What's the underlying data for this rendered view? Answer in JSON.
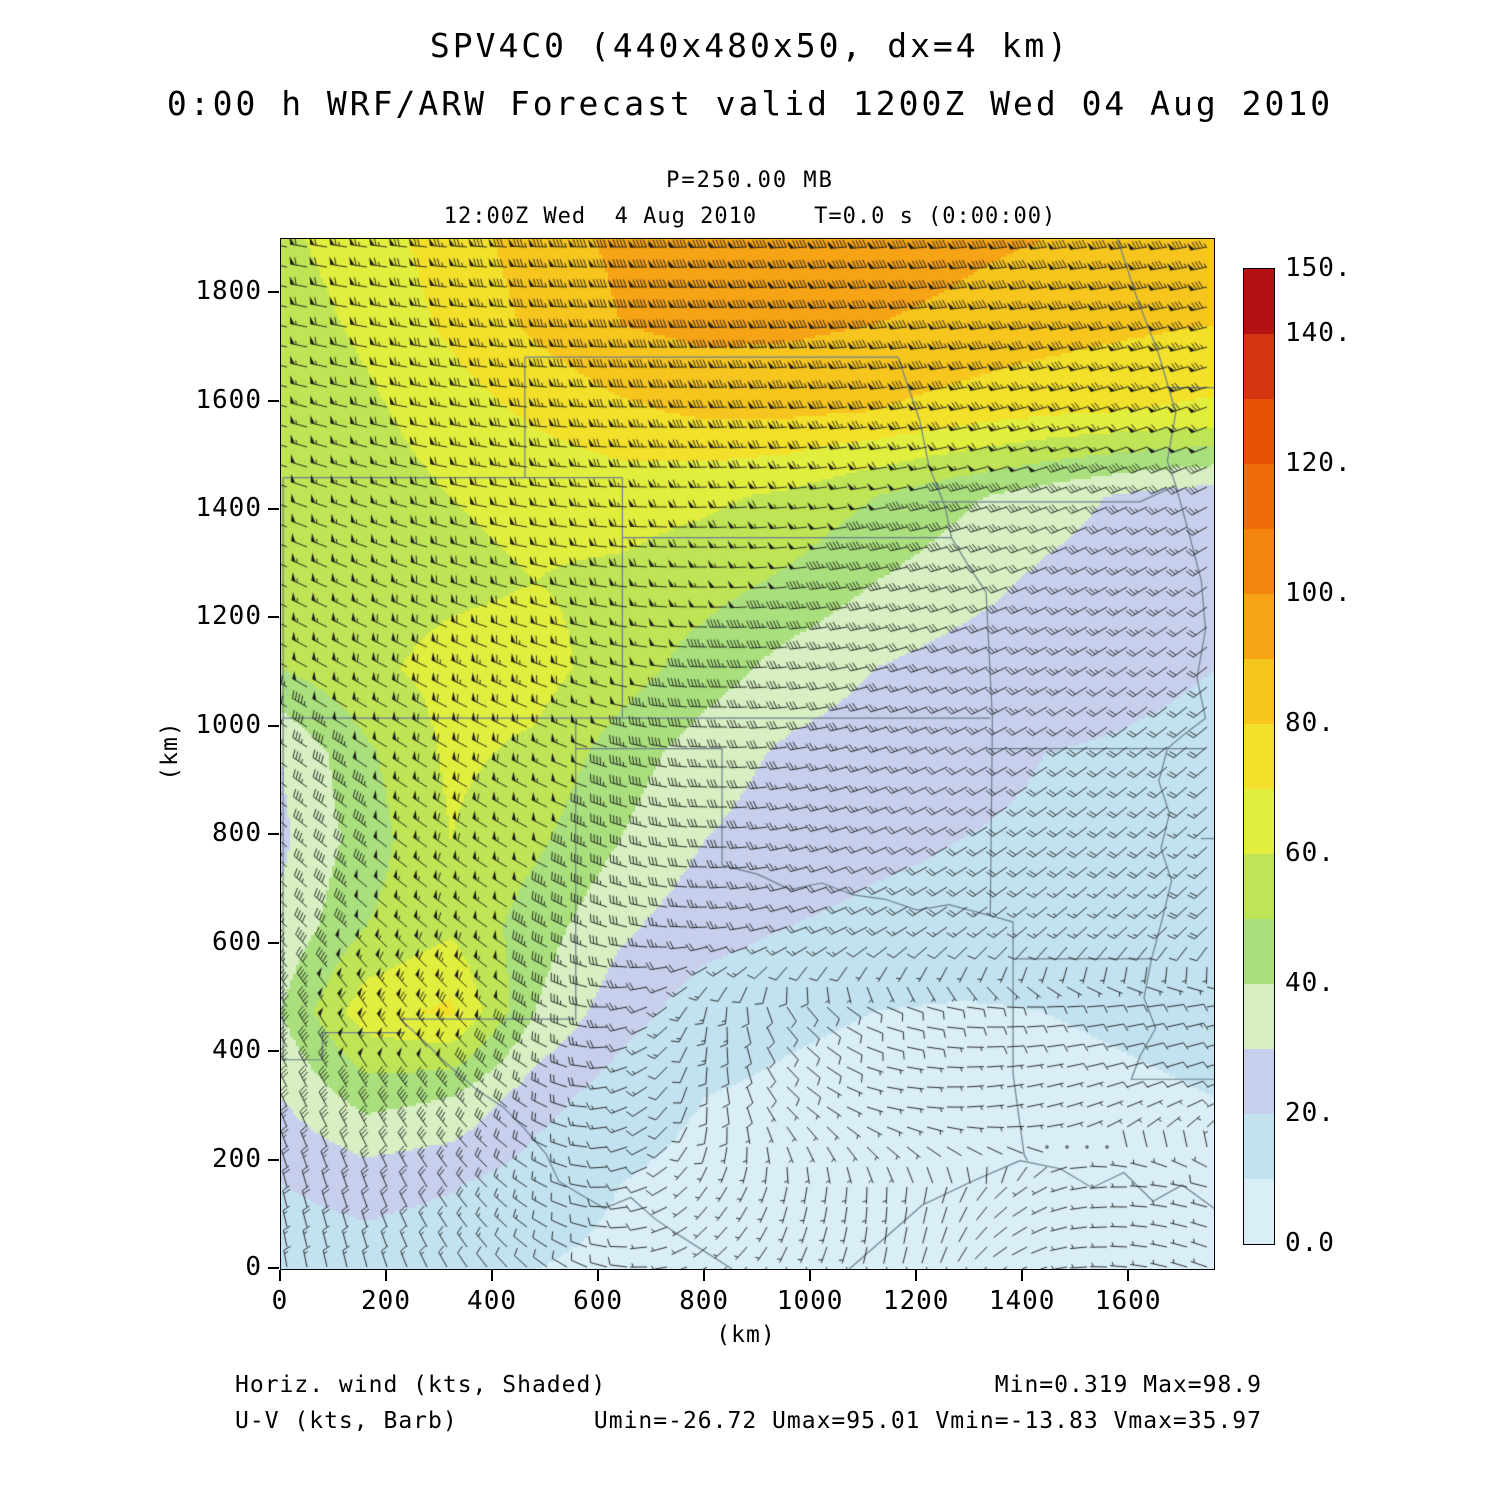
{
  "header": {
    "title_line1": "SPV4C0 (440x480x50, dx=4 km)",
    "title_line2": "0:00 h WRF/ARW Forecast valid 1200Z Wed 04 Aug 2010",
    "pressure_label": "P=250.00 MB",
    "time_label": "12:00Z Wed  4 Aug 2010    T=0.0 s (0:00:00)"
  },
  "footer": {
    "shading_label": "Horiz. wind (kts, Shaded)",
    "barb_label": "U-V (kts, Barb)",
    "minmax_label": "Min=0.319 Max=98.9",
    "uv_range_label": "Umin=-26.72 Umax=95.01 Vmin=-13.83 Vmax=35.97"
  },
  "chart_data": {
    "type": "heatmap",
    "field_name": "Horizontal wind speed (kts, shaded) with U-V wind barbs (kts) at 250.00 MB",
    "xlabel": "(km)",
    "ylabel": "(km)",
    "x_range": [
      0,
      1760
    ],
    "y_range": [
      0,
      1900
    ],
    "x_ticks": [
      0,
      200,
      400,
      600,
      800,
      1000,
      1200,
      1400,
      1600
    ],
    "y_ticks": [
      0,
      200,
      400,
      600,
      800,
      1000,
      1200,
      1400,
      1600,
      1800
    ],
    "stats": {
      "min": 0.319,
      "max": 98.9,
      "umin": -26.72,
      "umax": 95.01,
      "vmin": -13.83,
      "vmax": 35.97
    },
    "colorbar": {
      "levels": [
        0,
        10,
        20,
        30,
        40,
        50,
        60,
        70,
        80,
        90,
        100,
        110,
        120,
        130,
        140,
        150
      ],
      "colors": [
        "#d9eef6",
        "#c3e2f0",
        "#c7cfec",
        "#d7efc2",
        "#a9df7c",
        "#bfe455",
        "#e2ee3e",
        "#f2e02a",
        "#f6c51e",
        "#f6a316",
        "#f2850e",
        "#ee6b08",
        "#e65106",
        "#d63410",
        "#b41212"
      ],
      "ticks": [
        {
          "value": 150,
          "label": "150."
        },
        {
          "value": 140,
          "label": "140."
        },
        {
          "value": 120,
          "label": "120."
        },
        {
          "value": 100,
          "label": "100."
        },
        {
          "value": 80,
          "label": "80."
        },
        {
          "value": 60,
          "label": "60."
        },
        {
          "value": 40,
          "label": "40."
        },
        {
          "value": 20,
          "label": "20."
        },
        {
          "value": 0,
          "label": "0.0"
        }
      ]
    },
    "grid": {
      "x": [
        0,
        160,
        320,
        480,
        640,
        800,
        960,
        1120,
        1280,
        1440,
        1600,
        1760
      ],
      "y": [
        0,
        158,
        317,
        475,
        633,
        792,
        950,
        1108,
        1267,
        1425,
        1583,
        1742,
        1900
      ],
      "speed_kts": [
        [
          14,
          15,
          13,
          10,
          8,
          6,
          4,
          2,
          1,
          2,
          4,
          6
        ],
        [
          20,
          24,
          21,
          15,
          10,
          7,
          5,
          3,
          2,
          3,
          6,
          8
        ],
        [
          30,
          44,
          40,
          24,
          15,
          10,
          8,
          6,
          5,
          6,
          8,
          10
        ],
        [
          40,
          66,
          72,
          40,
          24,
          15,
          12,
          10,
          9,
          10,
          12,
          14
        ],
        [
          32,
          50,
          58,
          45,
          32,
          24,
          20,
          18,
          17,
          16,
          17,
          18
        ],
        [
          28,
          45,
          60,
          52,
          40,
          30,
          25,
          22,
          20,
          19,
          18,
          17
        ],
        [
          30,
          48,
          62,
          58,
          45,
          35,
          28,
          25,
          22,
          20,
          19,
          18
        ],
        [
          50,
          58,
          63,
          64,
          55,
          45,
          36,
          30,
          26,
          24,
          22,
          20
        ],
        [
          52,
          56,
          58,
          60,
          58,
          54,
          48,
          40,
          34,
          28,
          24,
          22
        ],
        [
          50,
          55,
          60,
          62,
          64,
          62,
          58,
          50,
          42,
          35,
          28,
          24
        ],
        [
          52,
          58,
          65,
          72,
          78,
          82,
          82,
          80,
          76,
          72,
          70,
          68
        ],
        [
          55,
          62,
          72,
          82,
          90,
          93,
          92,
          90,
          88,
          85,
          82,
          80
        ],
        [
          58,
          65,
          75,
          85,
          92,
          95,
          97,
          95,
          92,
          90,
          88,
          85
        ]
      ],
      "dir_from_deg": [
        [
          350,
          345,
          330,
          310,
          280,
          240,
          210,
          195,
          210,
          250,
          275,
          290
        ],
        [
          345,
          340,
          325,
          300,
          260,
          215,
          190,
          180,
          200,
          240,
          270,
          285
        ],
        [
          335,
          330,
          320,
          300,
          250,
          180,
          130,
          100,
          85,
          75,
          70,
          68
        ],
        [
          330,
          326,
          318,
          300,
          260,
          190,
          140,
          110,
          95,
          85,
          80,
          78
        ],
        [
          315,
          312,
          308,
          300,
          285,
          268,
          252,
          242,
          234,
          230,
          228,
          226
        ],
        [
          310,
          308,
          305,
          298,
          288,
          272,
          258,
          248,
          240,
          234,
          230,
          228
        ],
        [
          305,
          303,
          300,
          295,
          285,
          272,
          262,
          252,
          244,
          238,
          232,
          230
        ],
        [
          300,
          298,
          295,
          290,
          282,
          272,
          264,
          256,
          248,
          242,
          236,
          232
        ],
        [
          295,
          292,
          288,
          283,
          277,
          270,
          264,
          258,
          252,
          246,
          240,
          236
        ],
        [
          290,
          286,
          282,
          278,
          273,
          268,
          264,
          260,
          255,
          250,
          246,
          242
        ],
        [
          285,
          282,
          279,
          276,
          272,
          268,
          265,
          262,
          258,
          255,
          252,
          250
        ],
        [
          282,
          280,
          277,
          274,
          271,
          268,
          266,
          264,
          262,
          260,
          258,
          256
        ],
        [
          280,
          278,
          275,
          272,
          270,
          268,
          266,
          265,
          264,
          263,
          262,
          260
        ]
      ]
    },
    "state_borders": [
      [
        [
          4,
          1016
        ],
        [
          1338,
          1016
        ]
      ],
      [
        [
          556,
          461
        ],
        [
          556,
          1016
        ]
      ],
      [
        [
          556,
          960
        ],
        [
          832,
          960
        ]
      ],
      [
        [
          832,
          960
        ],
        [
          832,
          745
        ]
      ],
      [
        [
          832,
          745
        ],
        [
          900,
          728
        ],
        [
          960,
          700
        ],
        [
          1020,
          712
        ],
        [
          1080,
          690
        ],
        [
          1140,
          682
        ],
        [
          1200,
          662
        ],
        [
          1260,
          672
        ],
        [
          1338,
          652
        ]
      ],
      [
        [
          1338,
          652
        ],
        [
          1342,
          1016
        ],
        [
          1330,
          1249
        ]
      ],
      [
        [
          1330,
          960
        ],
        [
          1744,
          960
        ]
      ],
      [
        [
          1385,
          572
        ],
        [
          1642,
          572
        ]
      ],
      [
        [
          1338,
          652
        ],
        [
          1381,
          640
        ],
        [
          1381,
          360
        ],
        [
          1392,
          280
        ],
        [
          1402,
          210
        ],
        [
          1408,
          200
        ]
      ],
      [
        [
          0,
          386
        ],
        [
          78,
          386
        ],
        [
          78,
          436
        ],
        [
          232,
          436
        ]
      ],
      [
        [
          225,
          461
        ],
        [
          270,
          420
        ],
        [
          320,
          372
        ],
        [
          370,
          330
        ],
        [
          420,
          298
        ],
        [
          460,
          258
        ],
        [
          500,
          212
        ],
        [
          524,
          162
        ],
        [
          560,
          140
        ],
        [
          610,
          112
        ],
        [
          660,
          132
        ],
        [
          706,
          92
        ],
        [
          752,
          62
        ],
        [
          800,
          32
        ],
        [
          851,
          0
        ]
      ],
      [
        [
          225,
          461
        ],
        [
          556,
          461
        ]
      ],
      [
        [
          4,
          386
        ],
        [
          4,
          1460
        ]
      ],
      [
        [
          644,
          1016
        ],
        [
          644,
          1460
        ]
      ],
      [
        [
          644,
          1349
        ],
        [
          1265,
          1349
        ]
      ],
      [
        [
          4,
          1460
        ],
        [
          644,
          1460
        ]
      ],
      [
        [
          460,
          1460
        ],
        [
          460,
          1682
        ]
      ],
      [
        [
          460,
          1682
        ],
        [
          1164,
          1682
        ]
      ],
      [
        [
          1164,
          1682
        ],
        [
          1205,
          1565
        ],
        [
          1222,
          1482
        ],
        [
          1252,
          1408
        ],
        [
          1265,
          1349
        ],
        [
          1300,
          1292
        ],
        [
          1330,
          1249
        ]
      ],
      [
        [
          1222,
          1415
        ],
        [
          1620,
          1415
        ],
        [
          1688,
          1445
        ]
      ],
      [
        [
          1578,
          1900
        ],
        [
          1615,
          1790
        ],
        [
          1655,
          1690
        ],
        [
          1688,
          1580
        ],
        [
          1672,
          1490
        ],
        [
          1688,
          1445
        ],
        [
          1712,
          1360
        ],
        [
          1736,
          1270
        ],
        [
          1744,
          1180
        ],
        [
          1728,
          1090
        ],
        [
          1744,
          1016
        ],
        [
          1706,
          988
        ],
        [
          1672,
          960
        ]
      ],
      [
        [
          1672,
          960
        ],
        [
          1656,
          900
        ],
        [
          1676,
          840
        ],
        [
          1660,
          776
        ],
        [
          1680,
          716
        ],
        [
          1664,
          652
        ],
        [
          1650,
          600
        ],
        [
          1642,
          572
        ]
      ],
      [
        [
          1642,
          572
        ],
        [
          1628,
          500
        ],
        [
          1650,
          444
        ],
        [
          1620,
          392
        ],
        [
          1604,
          350
        ],
        [
          1760,
          350
        ]
      ],
      [
        [
          1072,
          0
        ],
        [
          1140,
          58
        ],
        [
          1210,
          118
        ],
        [
          1300,
          160
        ],
        [
          1394,
          200
        ]
      ],
      [
        [
          1394,
          200
        ],
        [
          1470,
          185
        ],
        [
          1530,
          150
        ],
        [
          1590,
          178
        ],
        [
          1645,
          125
        ],
        [
          1700,
          155
        ],
        [
          1760,
          112
        ]
      ],
      [
        [
          1672,
          1626
        ],
        [
          1760,
          1626
        ]
      ],
      [
        [
          1735,
          794
        ],
        [
          1760,
          794
        ]
      ]
    ]
  }
}
